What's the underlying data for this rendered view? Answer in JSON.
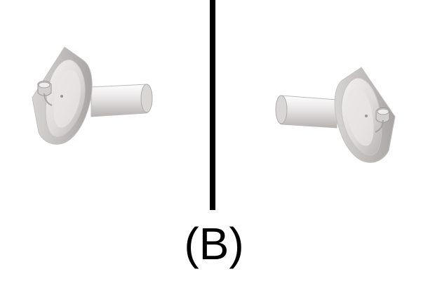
{
  "figure": {
    "label": "(B)"
  },
  "panels": [
    {
      "icon": "shower-head-icon"
    },
    {
      "icon": "shower-head-icon"
    }
  ]
}
